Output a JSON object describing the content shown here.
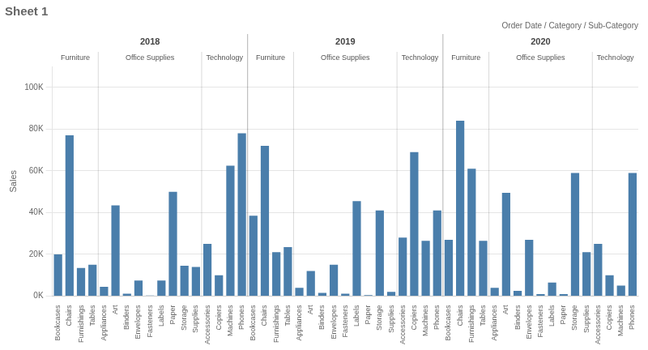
{
  "chart_data": {
    "type": "bar",
    "title": "Sheet 1",
    "subtitle": "Order Date / Category / Sub-Category",
    "y_label": "Sales",
    "categories": [
      "Bookcases",
      "Chairs",
      "Furnishings",
      "Tables",
      "Appliances",
      "Art",
      "Binders",
      "Envelopes",
      "Fasteners",
      "Labels",
      "Paper",
      "Storage",
      "Supplies",
      "Accessories",
      "Copiers",
      "Machines",
      "Phones",
      "Bookcases",
      "Chairs",
      "Furnishings",
      "Tables",
      "Appliances",
      "Art",
      "Binders",
      "Envelopes",
      "Fasteners",
      "Labels",
      "Paper",
      "Storage",
      "Supplies",
      "Accessories",
      "Copiers",
      "Machines",
      "Phones",
      "Bookcases",
      "Chairs",
      "Furnishings",
      "Tables",
      "Appliances",
      "Art",
      "Binders",
      "Envelopes",
      "Fasteners",
      "Labels",
      "Paper",
      "Storage",
      "Supplies",
      "Accessories",
      "Copiers",
      "Machines",
      "Phones"
    ],
    "values": [
      20000,
      77000,
      13500,
      15000,
      4500,
      43500,
      1200,
      7500,
      300,
      7500,
      50000,
      14500,
      14000,
      25000,
      10000,
      62500,
      78000,
      38500,
      72000,
      21000,
      23500,
      4000,
      12000,
      1500,
      15000,
      1200,
      45500,
      500,
      41000,
      2000,
      28000,
      69000,
      26500,
      41000,
      27000,
      84000,
      61000,
      26500,
      4000,
      49500,
      2500,
      27000,
      1000,
      6500,
      1000,
      59000,
      21000,
      25000,
      10000,
      5000,
      59000
    ],
    "groups": [
      {
        "label": "2018",
        "groups": [
          {
            "label": "Furniture",
            "size": 4
          },
          {
            "label": "Office Supplies",
            "size": 9
          },
          {
            "label": "Technology",
            "size": 4
          }
        ]
      },
      {
        "label": "2019",
        "groups": [
          {
            "label": "Furniture",
            "size": 4
          },
          {
            "label": "Office Supplies",
            "size": 9
          },
          {
            "label": "Technology",
            "size": 4
          }
        ]
      },
      {
        "label": "2020",
        "groups": [
          {
            "label": "Furniture",
            "size": 4
          },
          {
            "label": "Office Supplies",
            "size": 9
          },
          {
            "label": "Technology",
            "size": 4
          }
        ]
      }
    ],
    "color": "#4a7eab",
    "ylim": [
      0,
      110000
    ],
    "yticks": [
      {
        "value": 0,
        "label": "0K"
      },
      {
        "value": 20000,
        "label": "20K"
      },
      {
        "value": 40000,
        "label": "40K"
      },
      {
        "value": 60000,
        "label": "60K"
      },
      {
        "value": 80000,
        "label": "80K"
      },
      {
        "value": 100000,
        "label": "100K"
      }
    ],
    "grid": true
  }
}
